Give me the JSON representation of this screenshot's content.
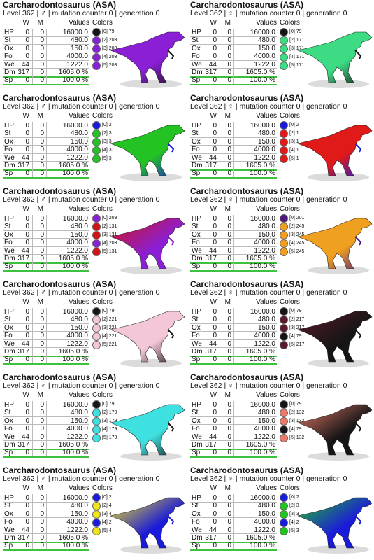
{
  "cards": [
    {
      "title": "Carcharodontosaurus (ASA)",
      "subtitle": "Level 362 | ♂ | mutation counter 0 | generation 0",
      "headers": [
        "W",
        "M",
        "Values",
        "Colors"
      ],
      "rows": [
        [
          "HP",
          "0",
          "0",
          "16000.0"
        ],
        [
          "St",
          "0",
          "0",
          "480.0"
        ],
        [
          "Ox",
          "0",
          "0",
          "150.0"
        ],
        [
          "Fo",
          "0",
          "0",
          "4000.0"
        ],
        [
          "We",
          "44",
          "0",
          "1222.0"
        ],
        [
          "Dm",
          "317",
          "0",
          "1605.0 %"
        ],
        [
          "Sp",
          "0",
          "0",
          "100.0 %"
        ]
      ],
      "colors": [
        {
          "label": "[0] 79",
          "color": "#151515"
        },
        {
          "label": "[2] 203",
          "color": "#8b1fd6"
        },
        {
          "label": "[3] 203",
          "color": "#8b1fd6"
        },
        {
          "label": "[4] 203",
          "color": "#8b1fd6"
        },
        {
          "label": "[5] 203",
          "color": "#8b1fd6"
        }
      ]
    },
    {
      "title": "Carcharodontosaurus (ASA)",
      "subtitle": "Level 362 | ♀ | mutation counter 0 | generation 0",
      "headers": [
        "W",
        "M",
        "Values",
        "Colors"
      ],
      "rows": [
        [
          "HP",
          "0",
          "0",
          "16000.0"
        ],
        [
          "St",
          "0",
          "0",
          "480.0"
        ],
        [
          "Ox",
          "0",
          "0",
          "150.0"
        ],
        [
          "Fo",
          "0",
          "0",
          "4000.0"
        ],
        [
          "We",
          "44",
          "0",
          "1222.0"
        ],
        [
          "Dm",
          "317",
          "0",
          "1605.0 %"
        ],
        [
          "Sp",
          "0",
          "0",
          "100.0 %"
        ]
      ],
      "colors": [
        {
          "label": "[0] 79",
          "color": "#151515"
        },
        {
          "label": "[2] 171",
          "color": "#3ddc84"
        },
        {
          "label": "[3] 171",
          "color": "#3ddc84"
        },
        {
          "label": "[4] 171",
          "color": "#3ddc84"
        },
        {
          "label": "[5] 171",
          "color": "#3ddc84"
        }
      ]
    },
    {
      "title": "Carcharodontosaurus (ASA)",
      "subtitle": "Level 362 | ♂ | mutation counter 0 | generation 0",
      "headers": [
        "W",
        "M",
        "Values",
        "Colors"
      ],
      "rows": [
        [
          "HP",
          "0",
          "0",
          "16000.0"
        ],
        [
          "St",
          "0",
          "0",
          "480.0"
        ],
        [
          "Ox",
          "0",
          "0",
          "150.0"
        ],
        [
          "Fo",
          "0",
          "0",
          "4000.0"
        ],
        [
          "We",
          "44",
          "0",
          "1222.0"
        ],
        [
          "Dm",
          "317",
          "0",
          "1605.0 %"
        ],
        [
          "Sp",
          "0",
          "0",
          "100.0 %"
        ]
      ],
      "colors": [
        {
          "label": "[0] 2",
          "color": "#1a1adb"
        },
        {
          "label": "[2] 3",
          "color": "#22c322"
        },
        {
          "label": "[3] 3",
          "color": "#22c322"
        },
        {
          "label": "[4] 3",
          "color": "#22c322"
        },
        {
          "label": "[5] 3",
          "color": "#22c322"
        }
      ]
    },
    {
      "title": "Carcharodontosaurus (ASA)",
      "subtitle": "Level 362 | ♀ | mutation counter 0 | generation 0",
      "headers": [
        "W",
        "M",
        "Values",
        "Colors"
      ],
      "rows": [
        [
          "HP",
          "0",
          "0",
          "16000.0"
        ],
        [
          "St",
          "0",
          "0",
          "480.0"
        ],
        [
          "Ox",
          "0",
          "0",
          "150.0"
        ],
        [
          "Fo",
          "0",
          "0",
          "4000.0"
        ],
        [
          "We",
          "44",
          "0",
          "1222.0"
        ],
        [
          "Dm",
          "317",
          "0",
          "1605.0 %"
        ],
        [
          "Sp",
          "0",
          "0",
          "100.0 %"
        ]
      ],
      "colors": [
        {
          "label": "[0] 2",
          "color": "#1a1adb"
        },
        {
          "label": "[2] 1",
          "color": "#e01919"
        },
        {
          "label": "[3] 1",
          "color": "#e01919"
        },
        {
          "label": "[4] 1",
          "color": "#e01919"
        },
        {
          "label": "[5] 1",
          "color": "#e01919"
        }
      ]
    },
    {
      "title": "Carcharodontosaurus (ASA)",
      "subtitle": "Level 362 | ♂ | mutation counter 0 | generation 0",
      "headers": [
        "W",
        "M",
        "Values",
        "Colors"
      ],
      "rows": [
        [
          "HP",
          "0",
          "0",
          "16000.0"
        ],
        [
          "St",
          "0",
          "0",
          "480.0"
        ],
        [
          "Ox",
          "0",
          "0",
          "150.0"
        ],
        [
          "Fo",
          "0",
          "0",
          "4000.0"
        ],
        [
          "We",
          "44",
          "0",
          "1222.0"
        ],
        [
          "Dm",
          "317",
          "0",
          "1605.0 %"
        ],
        [
          "Sp",
          "0",
          "0",
          "100.0 %"
        ]
      ],
      "colors": [
        {
          "label": "[0] 203",
          "color": "#8b1fd6"
        },
        {
          "label": "[2] 131",
          "color": "#d01414"
        },
        {
          "label": "[3] 131",
          "color": "#d01414"
        },
        {
          "label": "[4] 203",
          "color": "#8b1fd6"
        },
        {
          "label": "[5] 131",
          "color": "#d01414"
        }
      ]
    },
    {
      "title": "Carcharodontosaurus (ASA)",
      "subtitle": "Level 362 | ♀ | mutation counter 0 | generation 0",
      "headers": [
        "W",
        "M",
        "Values",
        "Colors"
      ],
      "rows": [
        [
          "HP",
          "0",
          "0",
          "16000.0"
        ],
        [
          "St",
          "0",
          "0",
          "480.0"
        ],
        [
          "Ox",
          "0",
          "0",
          "150.0"
        ],
        [
          "Fo",
          "0",
          "0",
          "4000.0"
        ],
        [
          "We",
          "44",
          "0",
          "1222.0"
        ],
        [
          "Dm",
          "317",
          "0",
          "1605.0 %"
        ],
        [
          "Sp",
          "0",
          "0",
          "100.0 %"
        ]
      ],
      "colors": [
        {
          "label": "[0] 201",
          "color": "#4b1a7a"
        },
        {
          "label": "[2] 245",
          "color": "#f0a020"
        },
        {
          "label": "[3] 245",
          "color": "#f0a020"
        },
        {
          "label": "[4] 245",
          "color": "#f0a020"
        },
        {
          "label": "[5] 245",
          "color": "#f0a020"
        }
      ]
    },
    {
      "title": "Carcharodontosaurus (ASA)",
      "subtitle": "Level 362 | ♂ | mutation counter 0 | generation 0",
      "headers": [
        "W",
        "M",
        "Values",
        "Colors"
      ],
      "rows": [
        [
          "HP",
          "0",
          "0",
          "16000.0"
        ],
        [
          "St",
          "0",
          "0",
          "480.0"
        ],
        [
          "Ox",
          "0",
          "0",
          "150.0"
        ],
        [
          "Fo",
          "0",
          "0",
          "4000.0"
        ],
        [
          "We",
          "44",
          "0",
          "1222.0"
        ],
        [
          "Dm",
          "317",
          "0",
          "1605.0 %"
        ],
        [
          "Sp",
          "0",
          "0",
          "100.0 %"
        ]
      ],
      "colors": [
        {
          "label": "[0] 79",
          "color": "#151515"
        },
        {
          "label": "[2] 221",
          "color": "#f3c6d8"
        },
        {
          "label": "[3] 221",
          "color": "#f3c6d8"
        },
        {
          "label": "[4] 221",
          "color": "#f3c6d8"
        },
        {
          "label": "[5] 221",
          "color": "#f3c6d8"
        }
      ]
    },
    {
      "title": "Carcharodontosaurus (ASA)",
      "subtitle": "Level 362 | ♀ | mutation counter 0 | generation 0",
      "headers": [
        "W",
        "M",
        "Values",
        "Colors"
      ],
      "rows": [
        [
          "HP",
          "0",
          "0",
          "16000.0"
        ],
        [
          "St",
          "0",
          "0",
          "480.0"
        ],
        [
          "Ox",
          "0",
          "0",
          "150.0"
        ],
        [
          "Fo",
          "0",
          "0",
          "4000.0"
        ],
        [
          "We",
          "44",
          "0",
          "1222.0"
        ],
        [
          "Dm",
          "317",
          "0",
          "1605.0 %"
        ],
        [
          "Sp",
          "0",
          "0",
          "100.0 %"
        ]
      ],
      "colors": [
        {
          "label": "[0] 79",
          "color": "#151515"
        },
        {
          "label": "[2] 217",
          "color": "#5a1a2a"
        },
        {
          "label": "[3] 217",
          "color": "#5a1a2a"
        },
        {
          "label": "[4] 79",
          "color": "#151515"
        },
        {
          "label": "[5] 217",
          "color": "#5a1a2a"
        }
      ]
    },
    {
      "title": "Carcharodontosaurus (ASA)",
      "subtitle": "Level 362 | ♂ | mutation counter 0 | generation 0",
      "headers": [
        "W",
        "M",
        "Values",
        "Colors"
      ],
      "rows": [
        [
          "HP",
          "0",
          "0",
          "16000.0"
        ],
        [
          "St",
          "0",
          "0",
          "480.0"
        ],
        [
          "Ox",
          "0",
          "0",
          "150.0"
        ],
        [
          "Fo",
          "0",
          "0",
          "4000.0"
        ],
        [
          "We",
          "44",
          "0",
          "1222.0"
        ],
        [
          "Dm",
          "317",
          "0",
          "1605.0 %"
        ],
        [
          "Sp",
          "0",
          "0",
          "100.0 %"
        ]
      ],
      "colors": [
        {
          "label": "[0] 79",
          "color": "#151515"
        },
        {
          "label": "[2] 179",
          "color": "#3fe0e0"
        },
        {
          "label": "[3] 179",
          "color": "#3fe0e0"
        },
        {
          "label": "[4] 179",
          "color": "#3fe0e0"
        },
        {
          "label": "[5] 179",
          "color": "#3fe0e0"
        }
      ]
    },
    {
      "title": "Carcharodontosaurus (ASA)",
      "subtitle": "Level 362 | ♀ | mutation counter 0 | generation 0",
      "headers": [
        "W",
        "M",
        "Values",
        "Colors"
      ],
      "rows": [
        [
          "HP",
          "0",
          "0",
          "16000.0"
        ],
        [
          "St",
          "0",
          "0",
          "480.0"
        ],
        [
          "Ox",
          "0",
          "0",
          "150.0"
        ],
        [
          "Fo",
          "0",
          "0",
          "4000.0"
        ],
        [
          "We",
          "44",
          "0",
          "1222.0"
        ],
        [
          "Dm",
          "317",
          "0",
          "1605.0 %"
        ],
        [
          "Sp",
          "0",
          "0",
          "100.0 %"
        ]
      ],
      "colors": [
        {
          "label": "[0] 79",
          "color": "#151515"
        },
        {
          "label": "[2] 132",
          "color": "#e87a6a"
        },
        {
          "label": "[3] 132",
          "color": "#e87a6a"
        },
        {
          "label": "[4] 79",
          "color": "#151515"
        },
        {
          "label": "[5] 132",
          "color": "#e87a6a"
        }
      ]
    },
    {
      "title": "Carcharodontosaurus (ASA)",
      "subtitle": "Level 362 | ♂ | mutation counter 0 | generation 0",
      "headers": [
        "W",
        "M",
        "Values",
        "Colors"
      ],
      "rows": [
        [
          "HP",
          "0",
          "0",
          "16000.0"
        ],
        [
          "St",
          "0",
          "0",
          "480.0"
        ],
        [
          "Ox",
          "0",
          "0",
          "150.0"
        ],
        [
          "Fo",
          "0",
          "0",
          "4000.0"
        ],
        [
          "We",
          "44",
          "0",
          "1222.0"
        ],
        [
          "Dm",
          "317",
          "0",
          "1605.0 %"
        ],
        [
          "Sp",
          "0",
          "0",
          "100.0 %"
        ]
      ],
      "colors": [
        {
          "label": "[0] 2",
          "color": "#1a1adb"
        },
        {
          "label": "[2] 4",
          "color": "#f2e41a"
        },
        {
          "label": "[3] 4",
          "color": "#f2e41a"
        },
        {
          "label": "[4] 2",
          "color": "#1a1adb"
        },
        {
          "label": "[5] 4",
          "color": "#f2e41a"
        }
      ]
    },
    {
      "title": "Carcharodontosaurus (ASA)",
      "subtitle": "Level 362 | ♀ | mutation counter 0 | generation 0",
      "headers": [
        "W",
        "M",
        "Values",
        "Colors"
      ],
      "rows": [
        [
          "HP",
          "0",
          "0",
          "16000.0"
        ],
        [
          "St",
          "0",
          "0",
          "480.0"
        ],
        [
          "Ox",
          "0",
          "0",
          "150.0"
        ],
        [
          "Fo",
          "0",
          "0",
          "4000.0"
        ],
        [
          "We",
          "44",
          "0",
          "1222.0"
        ],
        [
          "Dm",
          "317",
          "0",
          "1605.0 %"
        ],
        [
          "Sp",
          "0",
          "0",
          "100.0 %"
        ]
      ],
      "colors": [
        {
          "label": "[0] 2",
          "color": "#1a1adb"
        },
        {
          "label": "[2] 3",
          "color": "#22c322"
        },
        {
          "label": "[3] 3",
          "color": "#22c322"
        },
        {
          "label": "[4] 2",
          "color": "#1a1adb"
        },
        {
          "label": "[5] 3",
          "color": "#22c322"
        }
      ]
    }
  ]
}
